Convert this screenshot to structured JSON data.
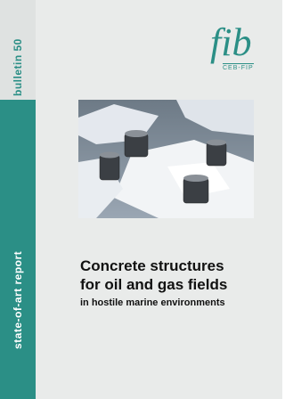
{
  "cover": {
    "series": "bulletin 50",
    "logo": {
      "text": "fib",
      "subtext": "CEB-FIP"
    },
    "side_label": "state-of-art report",
    "title": [
      "Concrete structures",
      "for oil and gas fields"
    ],
    "subtitle": "in hostile marine environments"
  }
}
